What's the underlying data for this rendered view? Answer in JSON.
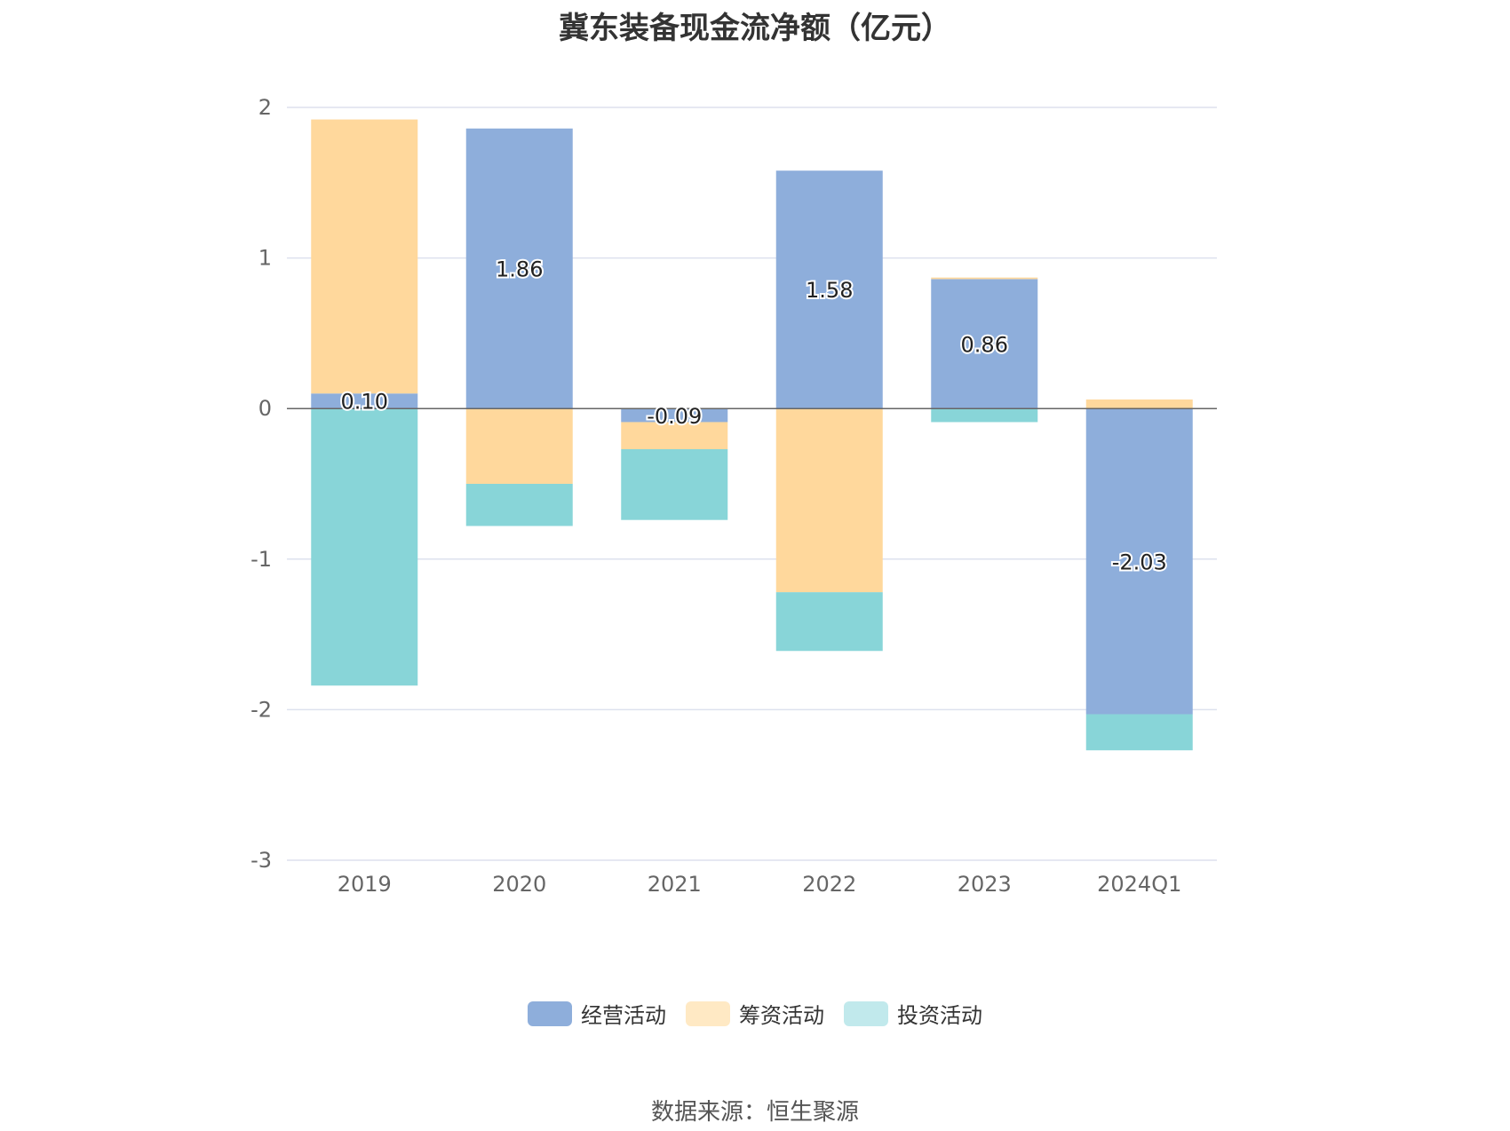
{
  "title": "冀东装备现金流净额（亿元）",
  "source": "数据来源：恒生聚源",
  "colors": {
    "operating": "#8eaedb",
    "financing": "#ffd89c",
    "investing": "#88d5d8",
    "legend_financing": "#ffe9c4",
    "legend_investing": "#c1e9ec",
    "grid": "#dde1ee",
    "zero": "#666666",
    "tick": "#666666"
  },
  "chart_data": {
    "type": "bar",
    "stacked": true,
    "categories": [
      "2019",
      "2020",
      "2021",
      "2022",
      "2023",
      "2024Q1"
    ],
    "series": [
      {
        "name": "经营活动",
        "values": [
          0.1,
          1.86,
          -0.09,
          1.58,
          0.86,
          -2.03
        ]
      },
      {
        "name": "筹资活动",
        "values": [
          1.82,
          -0.5,
          -0.18,
          -1.22,
          0.01,
          0.06
        ]
      },
      {
        "name": "投资活动",
        "values": [
          -1.84,
          -0.28,
          -0.47,
          -0.39,
          -0.09,
          -0.24
        ]
      }
    ],
    "data_labels": [
      "0.10",
      "1.86",
      "-0.09",
      "1.58",
      "0.86",
      "-2.03"
    ],
    "y_ticks": [
      "2",
      "1",
      "0",
      "-1",
      "-2",
      "-3"
    ],
    "ylim": [
      -3,
      2
    ],
    "legend_position": "bottom",
    "grid": true
  }
}
